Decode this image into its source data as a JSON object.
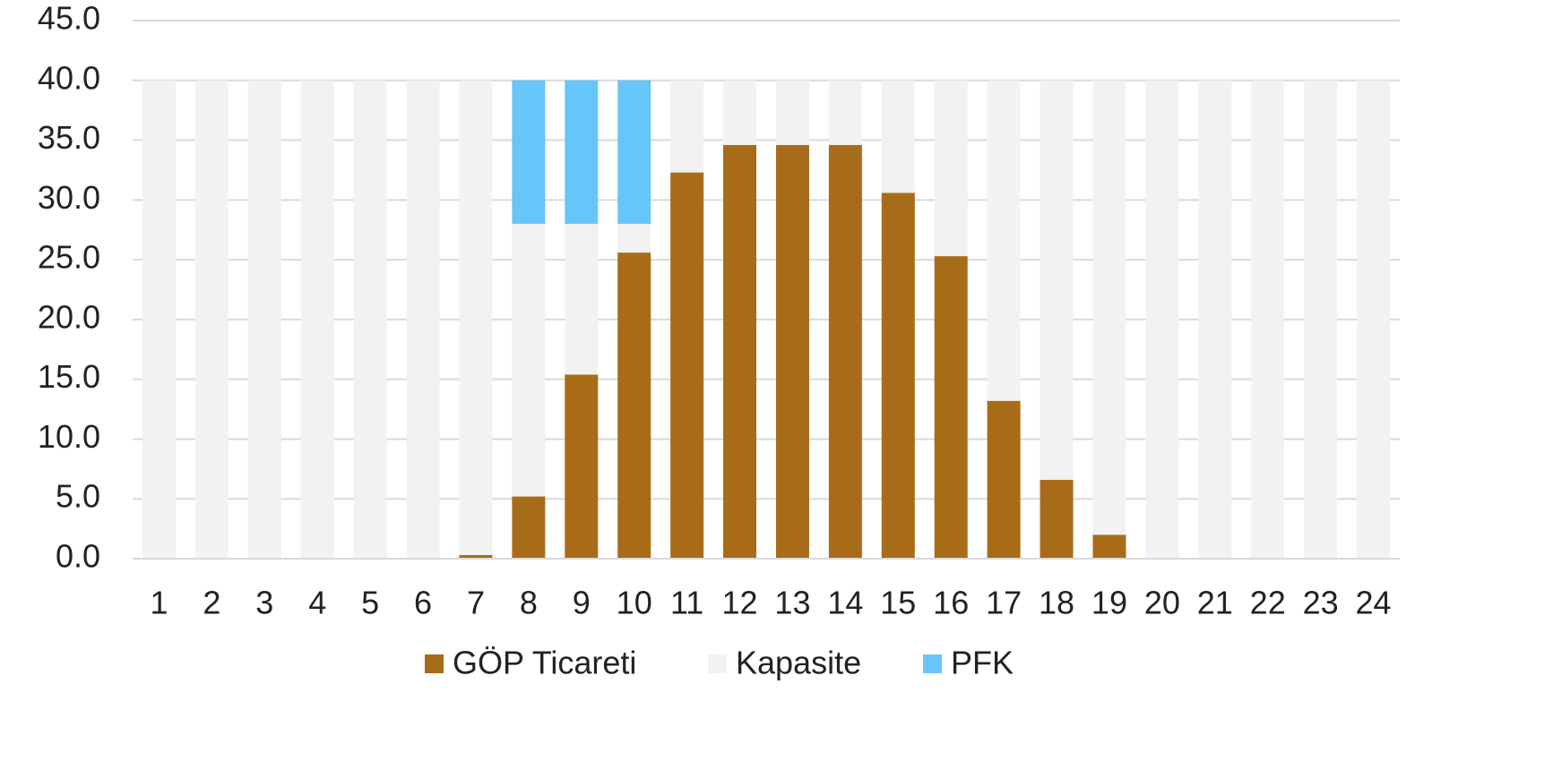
{
  "chart_data": {
    "type": "stacked_bar",
    "categories": [
      "1",
      "2",
      "3",
      "4",
      "5",
      "6",
      "7",
      "8",
      "9",
      "10",
      "11",
      "12",
      "13",
      "14",
      "15",
      "16",
      "17",
      "18",
      "19",
      "20",
      "21",
      "22",
      "23",
      "24"
    ],
    "series": [
      {
        "name": "GÖP Ticareti",
        "color": "#a86c18",
        "values": [
          0,
          0,
          0,
          0,
          0,
          0,
          0.3,
          5.2,
          15.4,
          25.6,
          32.3,
          34.6,
          34.6,
          34.6,
          30.6,
          25.3,
          13.2,
          6.6,
          2.0,
          0,
          0,
          0,
          0,
          0
        ]
      },
      {
        "name": "Kapasite",
        "color": "#f2f2f2",
        "values": [
          40,
          40,
          40,
          40,
          40,
          40,
          39.7,
          22.8,
          12.6,
          2.4,
          7.7,
          5.4,
          5.4,
          5.4,
          9.4,
          14.7,
          26.8,
          33.4,
          38.0,
          40,
          40,
          40,
          40,
          40
        ]
      },
      {
        "name": "PFK",
        "color": "#66c6fa",
        "values": [
          0,
          0,
          0,
          0,
          0,
          0,
          0,
          12,
          12,
          12,
          0,
          0,
          0,
          0,
          0,
          0,
          0,
          0,
          0,
          0,
          0,
          0,
          0,
          0
        ]
      }
    ],
    "ylim": [
      0,
      45
    ],
    "yticks": [
      {
        "value": 0,
        "label": "0.0"
      },
      {
        "value": 5,
        "label": "5.0"
      },
      {
        "value": 10,
        "label": "10.0"
      },
      {
        "value": 15,
        "label": "15.0"
      },
      {
        "value": 20,
        "label": "20.0"
      },
      {
        "value": 25,
        "label": "25.0"
      },
      {
        "value": 30,
        "label": "30.0"
      },
      {
        "value": 35,
        "label": "35.0"
      },
      {
        "value": 40,
        "label": "40.0"
      },
      {
        "value": 45,
        "label": "45.0"
      }
    ],
    "grid": true,
    "legend": "bottom"
  }
}
